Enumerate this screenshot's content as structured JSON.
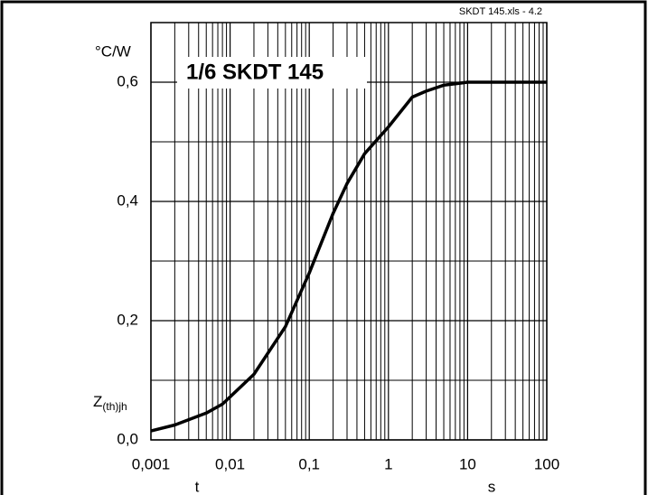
{
  "chart_data": {
    "type": "line",
    "title": "1/6 SKDT 145",
    "file_label": "SKDT 145.xls - 4.2",
    "y_unit": "°C/W",
    "ylabel_main": "Z",
    "ylabel_sub": "(th)jh",
    "xlabel": "t",
    "x_unit": "s",
    "log_x": true,
    "grid": true,
    "minor_grid": true,
    "x": [
      0.001,
      0.002,
      0.005,
      0.008,
      0.02,
      0.05,
      0.1,
      0.2,
      0.3,
      0.5,
      1,
      2,
      3,
      5,
      10,
      100
    ],
    "series": [
      {
        "color": "#000000",
        "values": [
          0.015,
          0.025,
          0.045,
          0.06,
          0.11,
          0.19,
          0.28,
          0.38,
          0.43,
          0.48,
          0.525,
          0.575,
          0.585,
          0.595,
          0.6,
          0.6
        ]
      }
    ],
    "xlim": [
      0.001,
      100
    ],
    "xticks": [
      {
        "value": 0.001,
        "label": "0,001"
      },
      {
        "value": 0.01,
        "label": "0,01"
      },
      {
        "value": 0.1,
        "label": "0,1"
      },
      1,
      10,
      100
    ],
    "ylim": [
      0,
      0.7
    ],
    "yticks": [
      {
        "value": 0,
        "label": "0,0"
      },
      {
        "value": 0.2,
        "label": "0,2"
      },
      {
        "value": 0.4,
        "label": "0,4"
      },
      {
        "value": 0.6,
        "label": "0,6"
      }
    ],
    "y_minor_gridlines": [
      0.1,
      0.3,
      0.5,
      0.7
    ]
  }
}
